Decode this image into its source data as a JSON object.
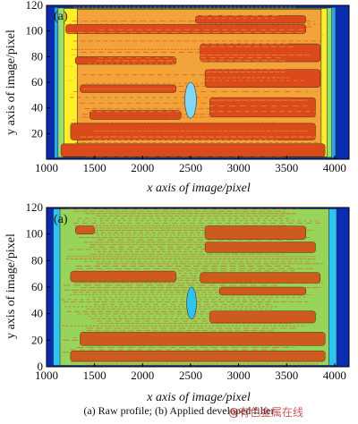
{
  "chart_data": [
    {
      "type": "heatmap",
      "panel_label": "(a)",
      "xlabel": "x axis of image/pixel",
      "ylabel": "y axis of image/pixel",
      "xlim": [
        1000,
        4150
      ],
      "ylim": [
        0,
        120
      ],
      "xticks": [
        1000,
        1500,
        2000,
        2500,
        3000,
        3500,
        4000
      ],
      "yticks": [
        20,
        40,
        60,
        80,
        100,
        120
      ],
      "colors": {
        "background": "#0a2cb0",
        "edge": "#2aa7e8",
        "mid": "#98e070",
        "main": "#ffee2a",
        "warm": "#f2a43a",
        "hot": "#da4a1a",
        "contour": "#1a1a1a"
      },
      "bands": [
        {
          "y": [
            2,
            12
          ],
          "x": [
            1150,
            3900
          ]
        },
        {
          "y": [
            15,
            28
          ],
          "x": [
            1250,
            3800
          ]
        },
        {
          "y": [
            31,
            38
          ],
          "x": [
            1450,
            2400
          ]
        },
        {
          "y": [
            33,
            48
          ],
          "x": [
            2700,
            3800
          ]
        },
        {
          "y": [
            52,
            58
          ],
          "x": [
            1350,
            2350
          ]
        },
        {
          "y": [
            56,
            70
          ],
          "x": [
            2650,
            3850
          ]
        },
        {
          "y": [
            74,
            80
          ],
          "x": [
            1300,
            2350
          ]
        },
        {
          "y": [
            76,
            90
          ],
          "x": [
            2600,
            3850
          ]
        },
        {
          "y": [
            98,
            105
          ],
          "x": [
            1200,
            3700
          ]
        },
        {
          "y": [
            106,
            112
          ],
          "x": [
            2550,
            3700
          ]
        }
      ],
      "defect": {
        "x": [
          2440,
          2560
        ],
        "y": [
          32,
          60
        ]
      }
    },
    {
      "type": "heatmap",
      "panel_label": "(a)",
      "xlabel": "x axis of image/pixel",
      "ylabel": "y axis of image/pixel",
      "xlim": [
        1000,
        4150
      ],
      "ylim": [
        0,
        120
      ],
      "xticks": [
        1000,
        1500,
        2000,
        2500,
        3000,
        3500,
        4000
      ],
      "yticks": [
        0,
        20,
        40,
        60,
        80,
        100,
        120
      ],
      "colors": {
        "background": "#0a2cb0",
        "edge": "#2ec3f0",
        "main": "#98d45a",
        "hot": "#cf5a1e",
        "contour": "#1a1a1a"
      },
      "bands": [
        {
          "y": [
            4,
            12
          ],
          "x": [
            1250,
            3900
          ]
        },
        {
          "y": [
            16,
            26
          ],
          "x": [
            1350,
            3900
          ]
        },
        {
          "y": [
            33,
            42
          ],
          "x": [
            2700,
            3800
          ]
        },
        {
          "y": [
            54,
            60
          ],
          "x": [
            2800,
            3700
          ]
        },
        {
          "y": [
            64,
            72
          ],
          "x": [
            1250,
            2350
          ]
        },
        {
          "y": [
            63,
            71
          ],
          "x": [
            2600,
            3850
          ]
        },
        {
          "y": [
            86,
            94
          ],
          "x": [
            2650,
            3800
          ]
        },
        {
          "y": [
            96,
            106
          ],
          "x": [
            2650,
            3700
          ]
        },
        {
          "y": [
            100,
            106
          ],
          "x": [
            1300,
            1500
          ]
        }
      ],
      "defect": {
        "x": [
          2460,
          2560
        ],
        "y": [
          36,
          60
        ]
      }
    }
  ],
  "caption": "(a)  Raw profile; (b) Applied developed filter",
  "watermark": "@有色金属在线"
}
